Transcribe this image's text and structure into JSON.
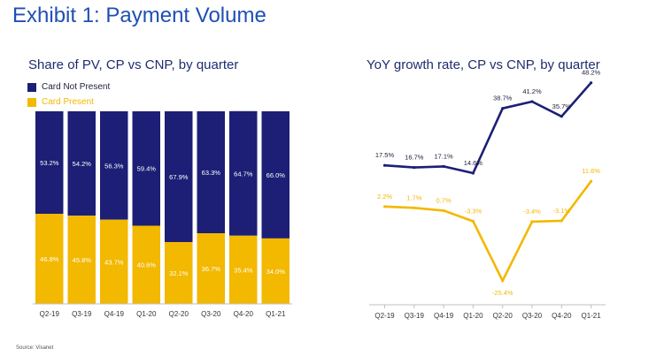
{
  "page": {
    "title": "Exhibit 1: Payment Volume",
    "source": "Source: Visanet"
  },
  "colors": {
    "cnp": "#1c1f75",
    "cp": "#f3b800",
    "subtitle": "#1f2d6e",
    "title": "#1f4fb4"
  },
  "chart_data": [
    {
      "type": "bar",
      "stacked": true,
      "title": "Share of PV,  CP vs CNP,  by quarter",
      "categories": [
        "Q2-19",
        "Q3-19",
        "Q4-19",
        "Q1-20",
        "Q2-20",
        "Q3-20",
        "Q4-20",
        "Q1-21"
      ],
      "series": [
        {
          "name": "Card Not Present",
          "values": [
            53.2,
            54.2,
            56.3,
            59.4,
            67.9,
            63.3,
            64.7,
            66.0
          ],
          "labels": [
            "53.2%",
            "54.2%",
            "56.3%",
            "59.4%",
            "67.9%",
            "63.3%",
            "64.7%",
            "66.0%"
          ]
        },
        {
          "name": "Card Present",
          "values": [
            46.8,
            45.8,
            43.7,
            40.6,
            32.1,
            36.7,
            35.4,
            34.0
          ],
          "labels": [
            "46.8%",
            "45.8%",
            "43.7%",
            "40.6%",
            "32.1%",
            "36.7%",
            "35.4%",
            "34.0%"
          ]
        }
      ],
      "ylim": [
        0,
        100
      ],
      "legend": "top-left",
      "grid": false
    },
    {
      "type": "line",
      "title": "YoY growth rate,  CP vs CNP,  by quarter",
      "categories": [
        "Q2-19",
        "Q3-19",
        "Q4-19",
        "Q1-20",
        "Q2-20",
        "Q3-20",
        "Q4-20",
        "Q1-21"
      ],
      "series": [
        {
          "name": "Card Not Present",
          "values": [
            17.5,
            16.7,
            17.1,
            14.6,
            38.7,
            41.2,
            35.7,
            48.2
          ],
          "labels": [
            "17.5%",
            "16.7%",
            "17.1%",
            "14.6%",
            "38.7%",
            "41.2%",
            "35.7%",
            "48.2%"
          ]
        },
        {
          "name": "Card Present",
          "values": [
            2.2,
            1.7,
            0.7,
            -3.3,
            -25.4,
            -3.4,
            -3.1,
            11.6
          ],
          "labels": [
            "2.2%",
            "1.7%",
            "0.7%",
            "-3.3%",
            "-25.4%",
            "-3.4%",
            "-3.1%",
            "11.6%"
          ]
        }
      ],
      "grid": false
    }
  ]
}
